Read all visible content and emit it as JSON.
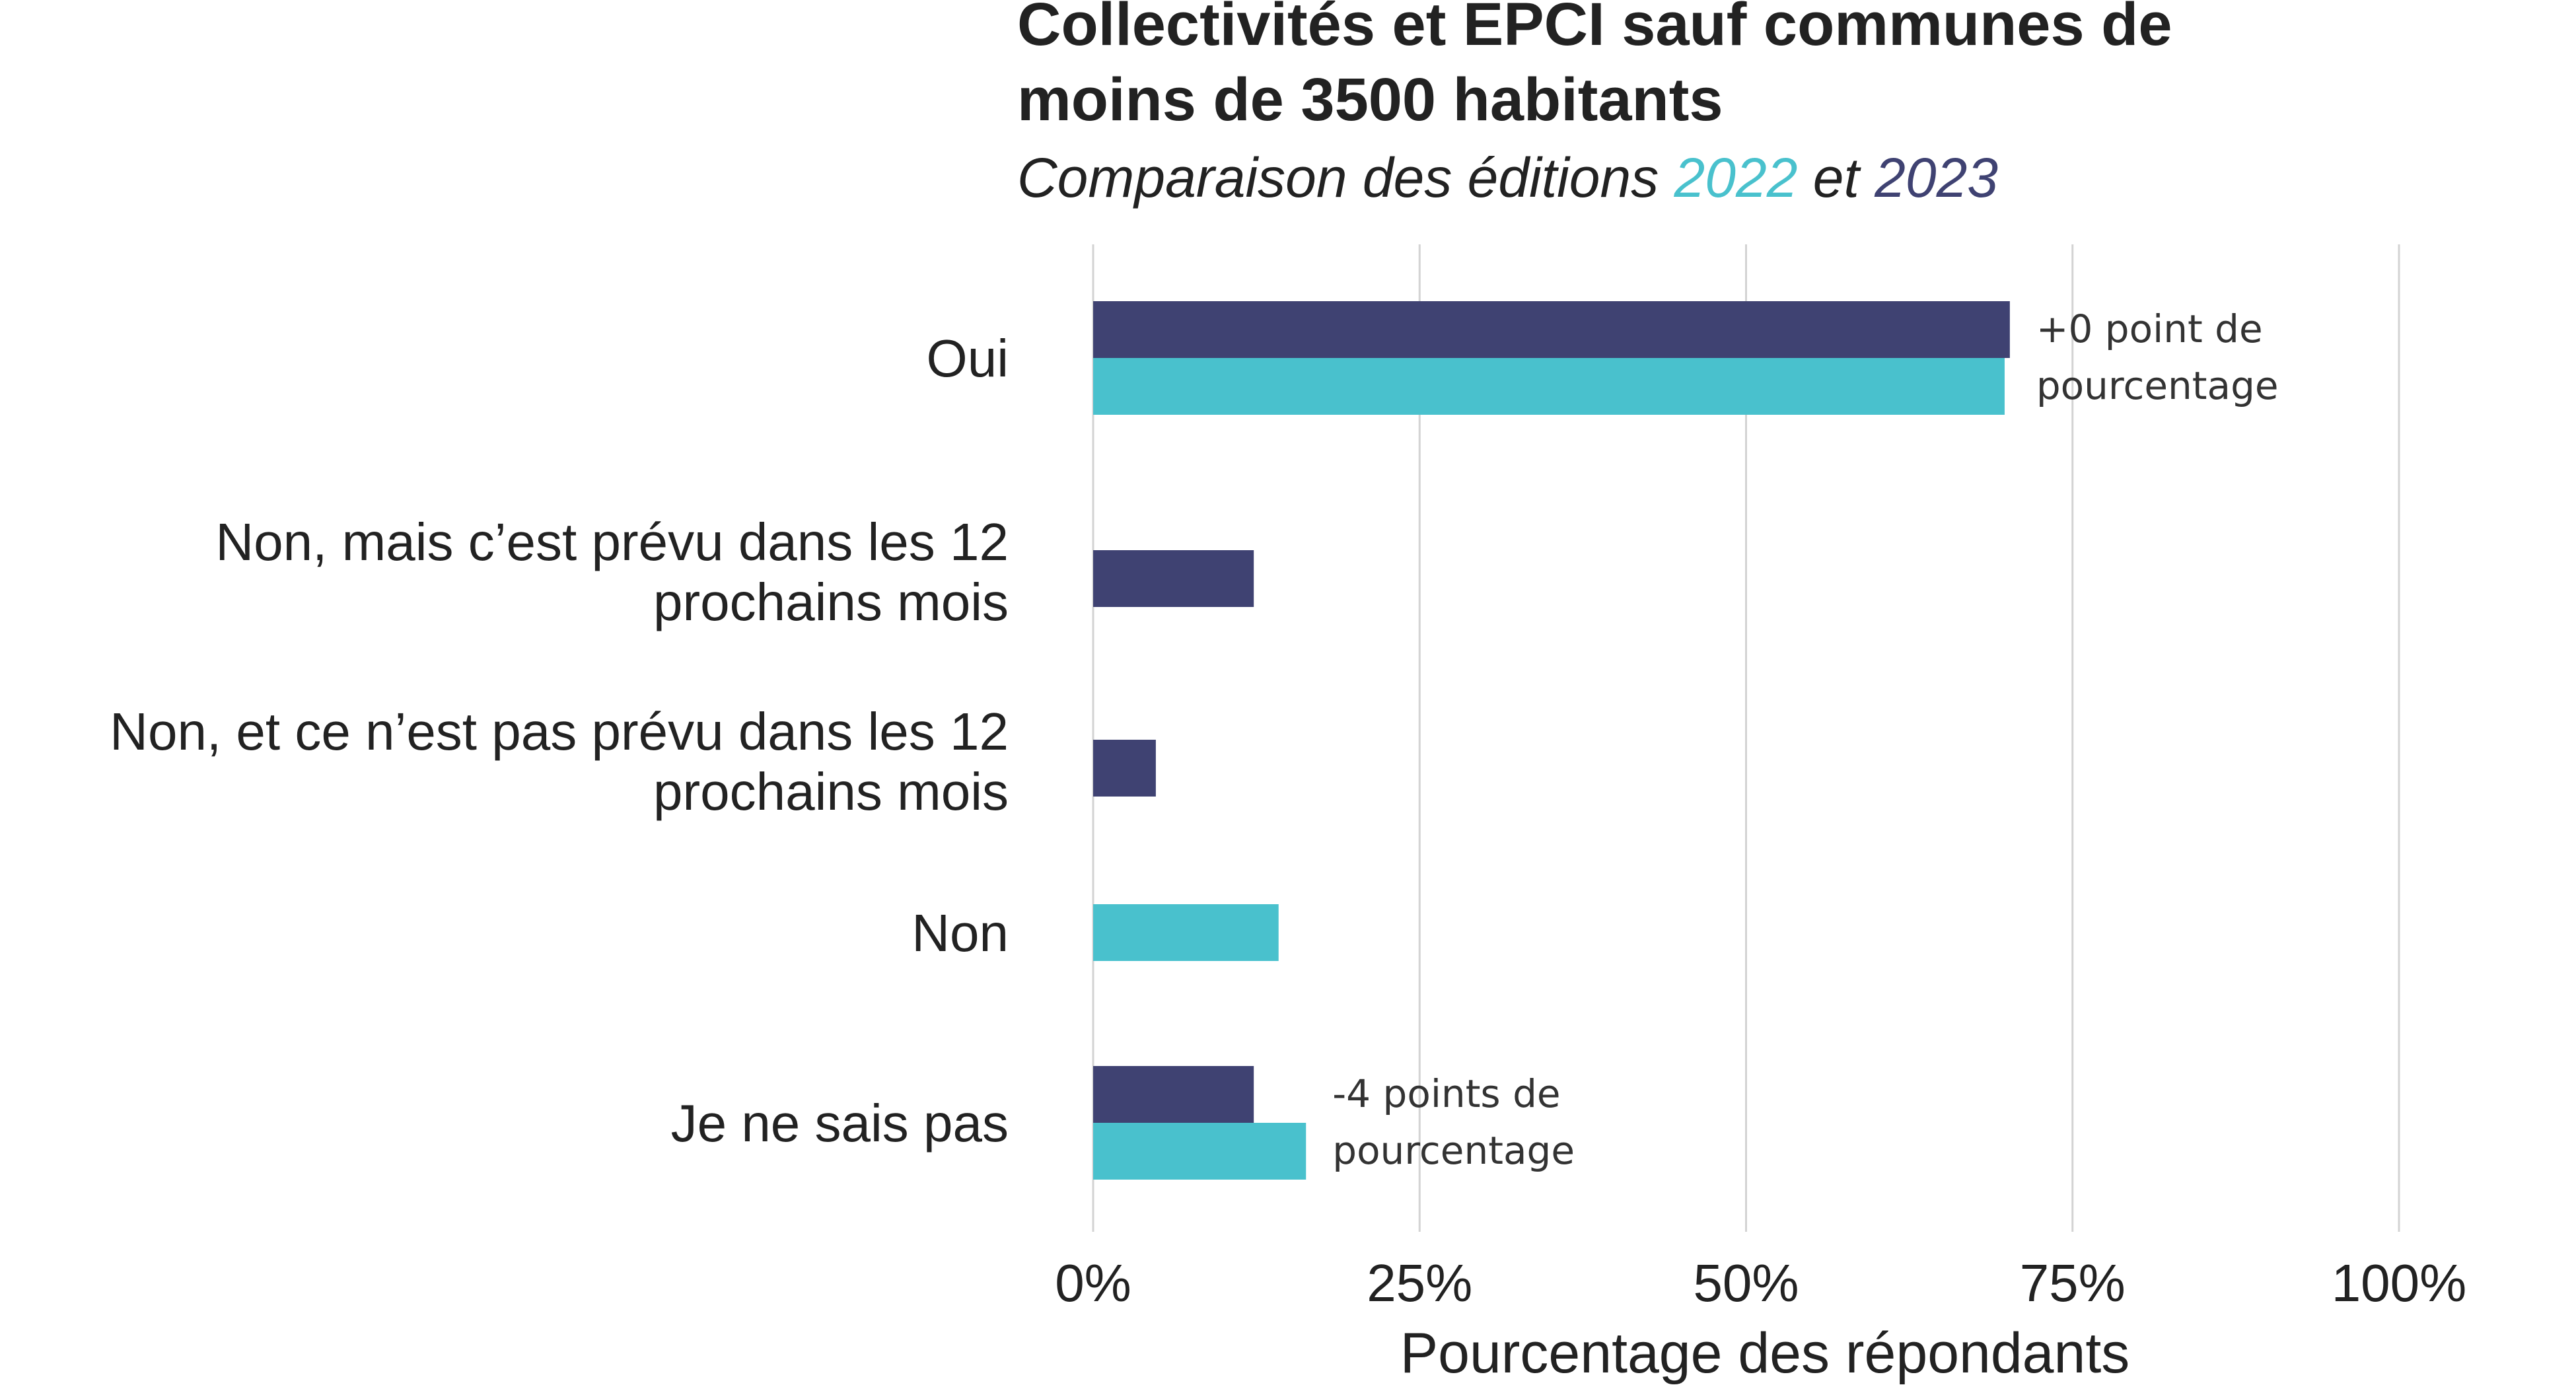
{
  "chart_data": {
    "type": "bar",
    "orientation": "horizontal",
    "title": "Collectivités et EPCI sauf communes de moins de 3500 habitants",
    "subtitle": {
      "prefix": "Comparaison des éditions ",
      "year_a": "2022",
      "middle": " et ",
      "year_b": "2023"
    },
    "xlabel": "Pourcentage des répondants",
    "xlim": [
      0,
      100
    ],
    "xticks": [
      0,
      25,
      50,
      75,
      100
    ],
    "xtick_labels": [
      "0%",
      "25%",
      "50%",
      "75%",
      "100%"
    ],
    "categories": [
      "Oui",
      "Non, mais c’est prévu dans les 12 prochains mois",
      "Non, et ce n’est pas prévu dans les 12 prochains mois",
      "Non",
      "Je ne sais pas"
    ],
    "series": [
      {
        "name": "2023",
        "color": "#3f4272",
        "values": [
          70.2,
          12.3,
          4.8,
          null,
          12.3
        ]
      },
      {
        "name": "2022",
        "color": "#49c1cd",
        "values": [
          69.8,
          null,
          null,
          14.2,
          16.3
        ]
      }
    ],
    "annotations": [
      {
        "category": "Oui",
        "text": "+0 point de pourcentage"
      },
      {
        "category": "Je ne sais pas",
        "text": "-4 points de pourcentage"
      }
    ],
    "grid": true
  },
  "colors": {
    "series_2023": "#3f4272",
    "series_2022": "#49c1cd",
    "grid": "#d3d3d3",
    "text": "#222222"
  }
}
